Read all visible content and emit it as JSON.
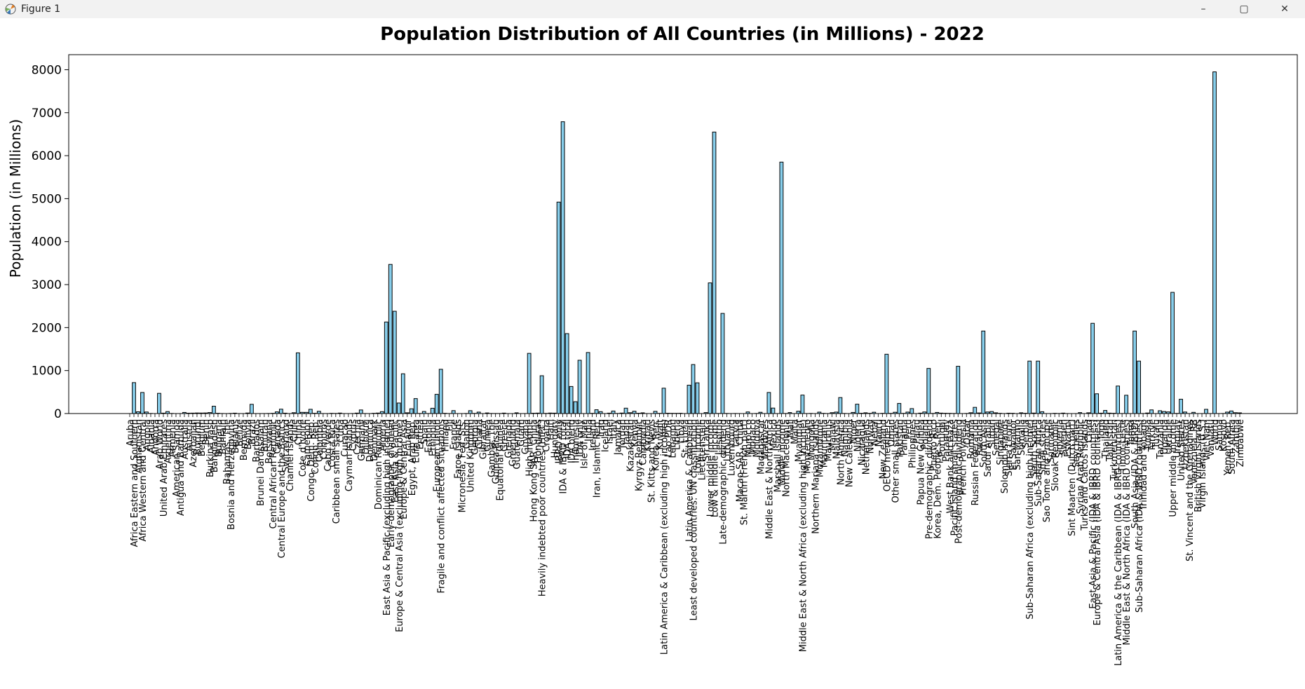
{
  "window": {
    "title": "Figure 1",
    "controls": {
      "minimize": "–",
      "maximize": "▢",
      "close": "✕"
    }
  },
  "colors": {
    "bar_fill": "#87CEEB",
    "bar_edge": "#000000"
  },
  "chart_data": {
    "type": "bar",
    "title": "Population Distribution of All Countries (in Millions) - 2022",
    "xlabel": "",
    "ylabel": "Population (in Millions)",
    "ylim": [
      0,
      8350
    ],
    "yticks": [
      0,
      1000,
      2000,
      3000,
      4000,
      5000,
      6000,
      7000,
      8000
    ],
    "grid": false,
    "legend": "none",
    "categories": [
      "Aruba",
      "Africa Eastern and Southern",
      "Afghanistan",
      "Africa Western and Central",
      "Angola",
      "Albania",
      "Andorra",
      "Arab World",
      "United Arab Emirates",
      "Argentina",
      "Armenia",
      "American Samoa",
      "Antigua and Barbuda",
      "Australia",
      "Austria",
      "Azerbaijan",
      "Burundi",
      "Belgium",
      "Benin",
      "Burkina Faso",
      "Bangladesh",
      "Bulgaria",
      "Bahrain",
      "Bahamas, The",
      "Bosnia and Herzegovina",
      "Belarus",
      "Belize",
      "Bermuda",
      "Bolivia",
      "Brazil",
      "Barbados",
      "Brunei Darussalam",
      "Bhutan",
      "Botswana",
      "Central African Republic",
      "Canada",
      "Central Europe and the Baltics",
      "Switzerland",
      "Channel Islands",
      "Chile",
      "China",
      "Cote d'Ivoire",
      "Cameroon",
      "Congo, Dem. Rep.",
      "Congo, Rep.",
      "Colombia",
      "Comoros",
      "Cabo Verde",
      "Costa Rica",
      "Caribbean small states",
      "Cuba",
      "Curacao",
      "Cayman Islands",
      "Cyprus",
      "Czechia",
      "Germany",
      "Djibouti",
      "Dominica",
      "Denmark",
      "Dominican Republic",
      "Algeria",
      "East Asia & Pacific (excluding high income)",
      "Early-demographic dividend",
      "East Asia & Pacific",
      "Europe & Central Asia (excluding high income)",
      "Europe & Central Asia",
      "Ecuador",
      "Egypt, Arab Rep.",
      "Euro area",
      "Eritrea",
      "Spain",
      "Estonia",
      "Ethiopia",
      "European Union",
      "Fragile and conflict affected situations",
      "Finland",
      "Fiji",
      "France",
      "Faroe Islands",
      "Micronesia, Fed. Sts.",
      "Gabon",
      "United Kingdom",
      "Georgia",
      "Ghana",
      "Gibraltar",
      "Guinea",
      "Gambia, The",
      "Guinea-Bissau",
      "Equatorial Guinea",
      "Greece",
      "Grenada",
      "Greenland",
      "Guatemala",
      "Guam",
      "Guyana",
      "High income",
      "Hong Kong SAR, China",
      "Honduras",
      "Heavily indebted poor countries (HIPC)",
      "Croatia",
      "Haiti",
      "Hungary",
      "IBRD only",
      "IDA & IBRD total",
      "IDA total",
      "IDA blend",
      "Indonesia",
      "IDA only",
      "Isle of Man",
      "India",
      "Ireland",
      "Iran, Islamic Rep.",
      "Iraq",
      "Iceland",
      "Israel",
      "Italy",
      "Jamaica",
      "Jordan",
      "Japan",
      "Kazakhstan",
      "Kenya",
      "Kyrgyz Republic",
      "Cambodia",
      "Kiribati",
      "St. Kitts and Nevis",
      "Korea, Rep.",
      "Kuwait",
      "Latin America & Caribbean (excluding high income)",
      "Lao PDR",
      "Lebanon",
      "Liberia",
      "Libya",
      "St. Lucia",
      "Latin America & Caribbean",
      "Least developed countries: UN classification",
      "Low income",
      "Liechtenstein",
      "Sri Lanka",
      "Lower middle income",
      "Low & middle income",
      "Lesotho",
      "Late-demographic dividend",
      "Lithuania",
      "Luxembourg",
      "Latvia",
      "Macao SAR, China",
      "St. Martin (French part)",
      "Morocco",
      "Monaco",
      "Moldova",
      "Madagascar",
      "Maldives",
      "Middle East & North Africa",
      "Mexico",
      "Marshall Islands",
      "Middle income",
      "North Macedonia",
      "Mali",
      "Malta",
      "Myanmar",
      "Middle East & North Africa (excluding high income)",
      "Montenegro",
      "Mongolia",
      "Northern Mariana Islands",
      "Mozambique",
      "Mauritania",
      "Mauritius",
      "Malawi",
      "Malaysia",
      "North America",
      "Namibia",
      "New Caledonia",
      "Niger",
      "Nigeria",
      "Nicaragua",
      "Netherlands",
      "Norway",
      "Nepal",
      "Nauru",
      "New Zealand",
      "OECD members",
      "Oman",
      "Other small states",
      "Pakistan",
      "Panama",
      "Peru",
      "Philippines",
      "Palau",
      "Papua New Guinea",
      "Poland",
      "Pre-demographic dividend",
      "Puerto Rico",
      "Korea, Dem. People's Rep.",
      "Portugal",
      "Paraguay",
      "West Bank and Gaza",
      "Pacific island small states",
      "Post-demographic dividend",
      "French Polynesia",
      "Qatar",
      "Romania",
      "Russian Federation",
      "Rwanda",
      "South Asia",
      "Saudi Arabia",
      "Sudan",
      "Senegal",
      "Singapore",
      "Solomon Islands",
      "Sierra Leone",
      "El Salvador",
      "San Marino",
      "Somalia",
      "Serbia",
      "Sub-Saharan Africa (excluding high income)",
      "South Sudan",
      "Sub-Saharan Africa",
      "Small states",
      "Sao Tome and Principe",
      "Suriname",
      "Slovak Republic",
      "Slovenia",
      "Sweden",
      "Eswatini",
      "Sint Maarten (Dutch part)",
      "Seychelles",
      "Syrian Arab Republic",
      "Turks and Caicos Islands",
      "Chad",
      "East Asia & Pacific (IDA & IBRD countries)",
      "Europe & Central Asia (IDA & IBRD countries)",
      "Togo",
      "Thailand",
      "Tajikistan",
      "Turkmenistan",
      "Latin America & the Caribbean (IDA & IBRD countries)",
      "Timor-Leste",
      "Middle East & North Africa (IDA & IBRD countries)",
      "Tonga",
      "South Asia (IDA & IBRD)",
      "Sub-Saharan Africa (IDA & IBRD countries)",
      "Trinidad and Tobago",
      "Tunisia",
      "Turkiye",
      "Tuvalu",
      "Tanzania",
      "Uganda",
      "Ukraine",
      "Upper middle income",
      "Uruguay",
      "United States",
      "Uzbekistan",
      "St. Vincent and the Grenadines",
      "Venezuela, RB",
      "British Virgin Islands",
      "Virgin Islands (U.S.)",
      "Viet Nam",
      "Vanuatu",
      "World",
      "Samoa",
      "Kosovo",
      "Yemen, Rep.",
      "South Africa",
      "Zambia",
      "Zimbabwe"
    ],
    "values": [
      0.1,
      720,
      41,
      490,
      36,
      2.8,
      0.08,
      470,
      9.4,
      46,
      2.8,
      0.04,
      0.09,
      26,
      9,
      10,
      13,
      11.7,
      13.4,
      22.7,
      171,
      6.5,
      1.5,
      0.4,
      3.2,
      9.2,
      0.4,
      0.06,
      12.2,
      215,
      0.28,
      0.45,
      0.78,
      2.6,
      5.6,
      38.9,
      102,
      8.8,
      0.17,
      19.6,
      1412,
      28.2,
      27.9,
      99,
      5.97,
      51.9,
      0.84,
      0.59,
      5.2,
      3,
      11.2,
      0.15,
      0.07,
      1.25,
      10.5,
      83.8,
      1.1,
      0.07,
      5.9,
      11.2,
      44.9,
      2130,
      3470,
      2380,
      245,
      925,
      18,
      111,
      348,
      2.7,
      47.8,
      1.3,
      123,
      447,
      1030,
      5.6,
      0.93,
      68,
      0.05,
      0.11,
      2.4,
      67,
      3.7,
      33.5,
      0.03,
      13.9,
      2.7,
      2.1,
      1.7,
      10.4,
      0.13,
      0.06,
      17.4,
      0.17,
      0.81,
      1400,
      7.3,
      10.4,
      880,
      3.9,
      11.6,
      9.6,
      4920,
      6790,
      1860,
      630,
      276,
      1240,
      0.08,
      1420,
      5.1,
      88.6,
      44.5,
      0.38,
      9.6,
      58.9,
      2.8,
      11.3,
      125,
      19.6,
      54,
      6.9,
      16.8,
      0.13,
      0.05,
      51.6,
      4.3,
      590,
      7.5,
      5.5,
      5.3,
      6.8,
      0.18,
      660,
      1140,
      715,
      0.04,
      22.2,
      3040,
      6550,
      2.3,
      2330,
      2.8,
      0.65,
      1.9,
      0.7,
      0.03,
      37.5,
      0.04,
      2.5,
      29.6,
      0.52,
      490,
      127,
      0.04,
      5850,
      2.1,
      22.6,
      0.53,
      54.2,
      430,
      0.62,
      3.4,
      0.05,
      33,
      4.7,
      1.26,
      20.4,
      33.9,
      372,
      2.6,
      0.29,
      26.2,
      218,
      6.9,
      17.7,
      5.5,
      30.5,
      0.01,
      5.1,
      1380,
      4.6,
      30,
      235,
      4.4,
      34,
      115,
      0.02,
      10.1,
      36.8,
      1050,
      3.2,
      26.1,
      10.4,
      6.8,
      5.2,
      2.6,
      1100,
      0.31,
      2.7,
      19,
      144,
      13.8,
      1920,
      36.4,
      46.9,
      17.3,
      5.6,
      0.72,
      8.6,
      6.3,
      0.03,
      17.6,
      6.7,
      1220,
      10.9,
      1220,
      42,
      0.23,
      0.62,
      5.4,
      2.1,
      10.5,
      1.2,
      0.04,
      0.1,
      22.1,
      0.05,
      17.7,
      2100,
      460,
      8.8,
      71.7,
      10,
      6.4,
      640,
      1.3,
      426,
      0.11,
      1920,
      1220,
      1.5,
      12.4,
      85.3,
      0.01,
      65.5,
      47.2,
      38,
      2820,
      3.4,
      333,
      35.6,
      0.1,
      28.3,
      0.03,
      0.1,
      98.2,
      0.33,
      7950,
      0.22,
      1.76,
      33.7,
      59.9,
      20,
      16.3
    ]
  }
}
